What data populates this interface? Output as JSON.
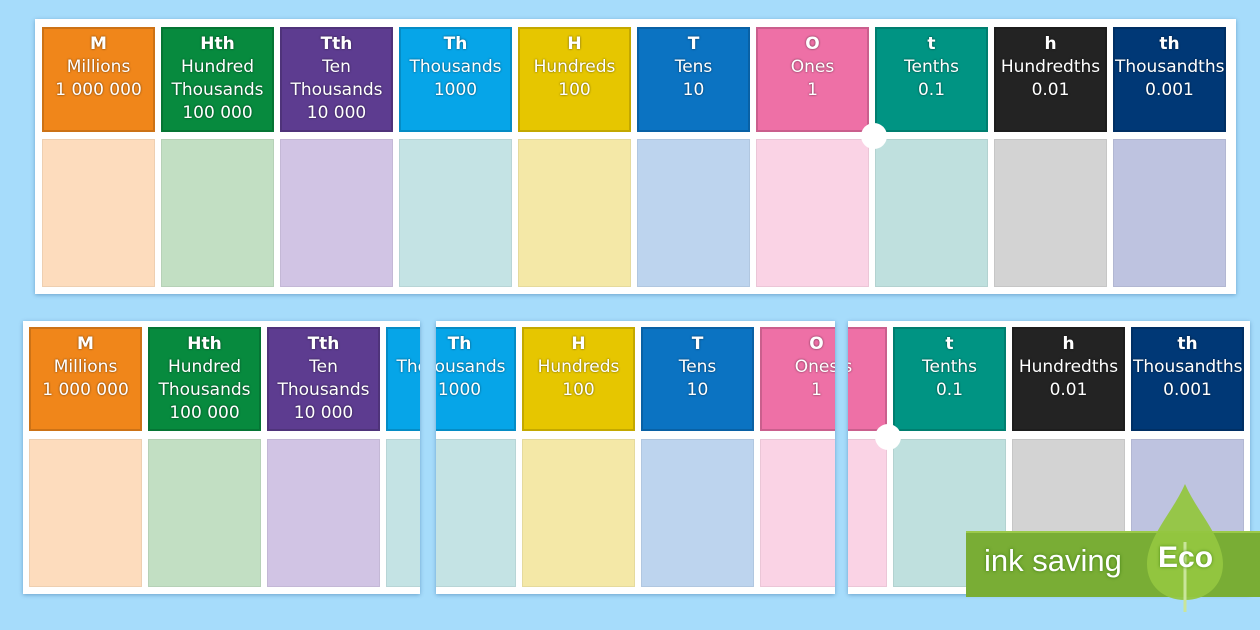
{
  "columns": [
    {
      "abbr": "M",
      "lines": [
        "Millions",
        "1 000 000"
      ],
      "color": "#f0861a",
      "light": "#fddcbd"
    },
    {
      "abbr": "Hth",
      "lines": [
        "Hundred",
        "Thousands",
        "100 000"
      ],
      "color": "#078a3e",
      "light": "#c2dfc3"
    },
    {
      "abbr": "Tth",
      "lines": [
        "Ten",
        "Thousands",
        "10 000"
      ],
      "color": "#5d3c90",
      "light": "#d1c4e4"
    },
    {
      "abbr": "Th",
      "lines": [
        "Thousands",
        "1000"
      ],
      "color": "#06a5e8",
      "light": "#c4e3e4"
    },
    {
      "abbr": "H",
      "lines": [
        "Hundreds",
        "100"
      ],
      "color": "#e6c600",
      "light": "#f4e8a7"
    },
    {
      "abbr": "T",
      "lines": [
        "Tens",
        "10"
      ],
      "color": "#0b73c2",
      "light": "#bdd4ee"
    },
    {
      "abbr": "O",
      "lines": [
        "Ones",
        "1"
      ],
      "color": "#ee70a6",
      "light": "#fad3e5"
    },
    {
      "abbr": "t",
      "lines": [
        "Tenths",
        "0.1"
      ],
      "color": "#009483",
      "light": "#bfe0de"
    },
    {
      "abbr": "h",
      "lines": [
        "Hundredths",
        "0.01"
      ],
      "color": "#232323",
      "light": "#d3d3d3"
    },
    {
      "abbr": "th",
      "lines": [
        "Thousandths",
        "0.001"
      ],
      "color": "#003876",
      "light": "#bec3e0"
    }
  ],
  "badge": {
    "label": "ink saving",
    "eco": "Eco",
    "color": "#79ad35"
  }
}
